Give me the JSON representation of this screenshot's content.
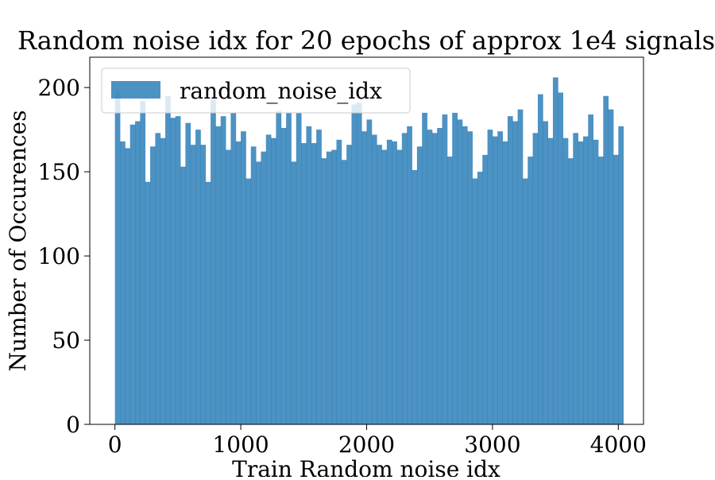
{
  "chart_data": {
    "type": "bar",
    "title": "Random noise idx for 20 epochs of approx 1e4 signals",
    "xlabel": "Train Random noise idx",
    "ylabel": "Number of Occurences",
    "xlim": [
      -200,
      4200
    ],
    "ylim": [
      0,
      218
    ],
    "x_ticks": [
      0,
      1000,
      2000,
      3000,
      4000
    ],
    "x_tick_labels": [
      "0",
      "1000",
      "2000",
      "3000",
      "4000"
    ],
    "y_ticks": [
      0,
      50,
      100,
      150,
      200
    ],
    "y_tick_labels": [
      "0",
      "50",
      "100",
      "150",
      "200"
    ],
    "grid": false,
    "legend_position": "upper-left",
    "bin_start": 0,
    "bin_width": 40,
    "series": [
      {
        "name": "random_noise_idx",
        "color": "#1f77b4",
        "alpha": 0.8,
        "values": [
          198,
          168,
          164,
          178,
          180,
          192,
          144,
          165,
          173,
          170,
          195,
          182,
          183,
          153,
          179,
          166,
          175,
          166,
          144,
          193,
          177,
          183,
          163,
          185,
          168,
          174,
          146,
          165,
          156,
          162,
          172,
          170,
          186,
          176,
          185,
          156,
          185,
          167,
          177,
          167,
          175,
          158,
          162,
          163,
          169,
          157,
          166,
          190,
          191,
          174,
          181,
          172,
          166,
          163,
          169,
          168,
          163,
          173,
          177,
          151,
          165,
          185,
          175,
          173,
          176,
          184,
          159,
          185,
          181,
          177,
          174,
          146,
          150,
          160,
          175,
          171,
          174,
          168,
          183,
          180,
          187,
          146,
          159,
          173,
          196,
          180,
          170,
          206,
          197,
          170,
          158,
          173,
          168,
          171,
          184,
          169,
          159,
          195,
          187,
          160,
          177
        ]
      }
    ]
  }
}
